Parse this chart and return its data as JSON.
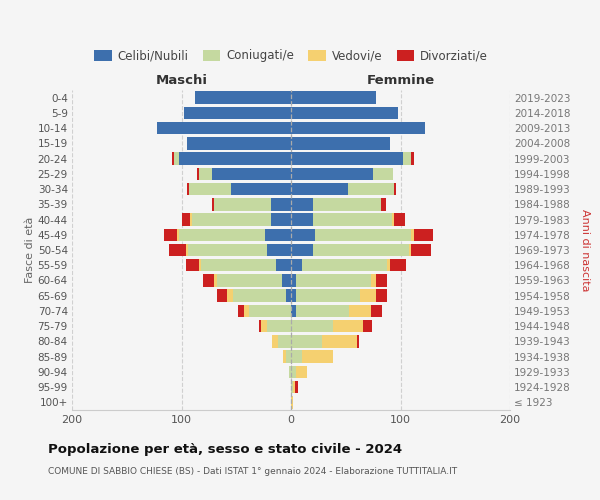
{
  "age_groups": [
    "100+",
    "95-99",
    "90-94",
    "85-89",
    "80-84",
    "75-79",
    "70-74",
    "65-69",
    "60-64",
    "55-59",
    "50-54",
    "45-49",
    "40-44",
    "35-39",
    "30-34",
    "25-29",
    "20-24",
    "15-19",
    "10-14",
    "5-9",
    "0-4"
  ],
  "birth_years": [
    "≤ 1923",
    "1924-1928",
    "1929-1933",
    "1934-1938",
    "1939-1943",
    "1944-1948",
    "1949-1953",
    "1954-1958",
    "1959-1963",
    "1964-1968",
    "1969-1973",
    "1974-1978",
    "1979-1983",
    "1984-1988",
    "1989-1993",
    "1994-1998",
    "1999-2003",
    "2004-2008",
    "2009-2013",
    "2014-2018",
    "2019-2023"
  ],
  "colors": {
    "celibi": "#3d6fad",
    "coniugati": "#c5d9a0",
    "vedovi": "#f5d070",
    "divorziati": "#cc2020"
  },
  "maschi": {
    "celibi": [
      0,
      0,
      0,
      0,
      0,
      0,
      0,
      5,
      8,
      14,
      22,
      24,
      18,
      18,
      55,
      72,
      102,
      95,
      122,
      98,
      88
    ],
    "coniugati": [
      0,
      0,
      2,
      5,
      12,
      22,
      38,
      48,
      60,
      68,
      72,
      78,
      72,
      52,
      38,
      12,
      5,
      0,
      0,
      0,
      0
    ],
    "vedovi": [
      0,
      0,
      0,
      2,
      5,
      5,
      5,
      5,
      2,
      2,
      2,
      2,
      2,
      0,
      0,
      0,
      0,
      0,
      0,
      0,
      0
    ],
    "divorziati": [
      0,
      0,
      0,
      0,
      0,
      2,
      5,
      10,
      10,
      12,
      15,
      12,
      8,
      2,
      2,
      2,
      2,
      0,
      0,
      0,
      0
    ]
  },
  "femmine": {
    "celibi": [
      0,
      0,
      0,
      0,
      0,
      0,
      5,
      5,
      5,
      10,
      20,
      22,
      20,
      20,
      52,
      75,
      102,
      90,
      122,
      98,
      78
    ],
    "coniugati": [
      0,
      2,
      5,
      10,
      28,
      38,
      48,
      58,
      68,
      78,
      88,
      88,
      72,
      62,
      42,
      18,
      8,
      0,
      0,
      0,
      0
    ],
    "vedovi": [
      2,
      2,
      10,
      28,
      32,
      28,
      20,
      15,
      5,
      2,
      2,
      2,
      2,
      0,
      0,
      0,
      0,
      0,
      0,
      0,
      0
    ],
    "divorziati": [
      0,
      2,
      0,
      0,
      2,
      8,
      10,
      10,
      10,
      15,
      18,
      18,
      10,
      5,
      2,
      0,
      2,
      0,
      0,
      0,
      0
    ]
  },
  "title": "Popolazione per età, sesso e stato civile - 2024",
  "subtitle": "COMUNE DI SABBIO CHIESE (BS) - Dati ISTAT 1° gennaio 2024 - Elaborazione TUTTITALIA.IT",
  "xlabel_left": "Maschi",
  "xlabel_right": "Femmine",
  "ylabel_left": "Fasce di età",
  "ylabel_right": "Anni di nascita",
  "xlim": 200,
  "legend_labels": [
    "Celibi/Nubili",
    "Coniugati/e",
    "Vedovi/e",
    "Divorziati/e"
  ],
  "bg_color": "#f5f5f5"
}
